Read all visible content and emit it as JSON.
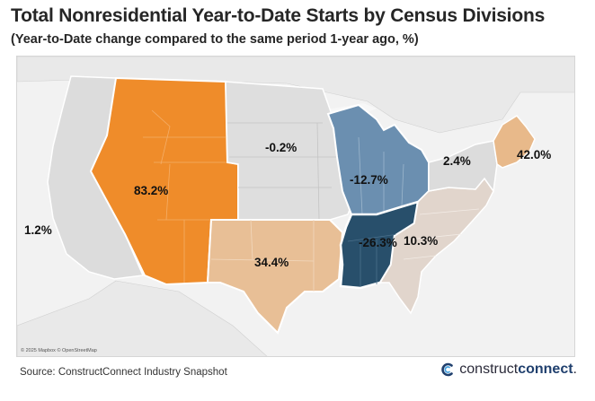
{
  "header": {
    "title": "Total Nonresidential Year-to-Date Starts by Census Divisions",
    "subtitle": "(Year-to-Date change compared to the same period 1-year ago, %)"
  },
  "map": {
    "attribution": "© 2025 Mapbox © OpenStreetMap",
    "divisions": [
      {
        "id": "pacific",
        "value_label": "1.2%",
        "color": "#dcdcdc"
      },
      {
        "id": "mountain",
        "value_label": "83.2%",
        "color": "#ef8c2a"
      },
      {
        "id": "west-north-central",
        "value_label": "-0.2%",
        "color": "#dedede"
      },
      {
        "id": "west-south-central",
        "value_label": "34.4%",
        "color": "#e8bf96"
      },
      {
        "id": "east-north-central",
        "value_label": "-12.7%",
        "color": "#6b8fb0"
      },
      {
        "id": "east-south-central",
        "value_label": "-26.3%",
        "color": "#284f6b"
      },
      {
        "id": "south-atlantic",
        "value_label": "10.3%",
        "color": "#e1d5cc"
      },
      {
        "id": "middle-atlantic",
        "value_label": "2.4%",
        "color": "#dcdcdc"
      },
      {
        "id": "new-england",
        "value_label": "42.0%",
        "color": "#e8b98a"
      }
    ]
  },
  "footer": {
    "source": "Source: ConstructConnect Industry Snapshot",
    "brand_light": "construct",
    "brand_bold": "connect",
    "brand_suffix": "."
  }
}
